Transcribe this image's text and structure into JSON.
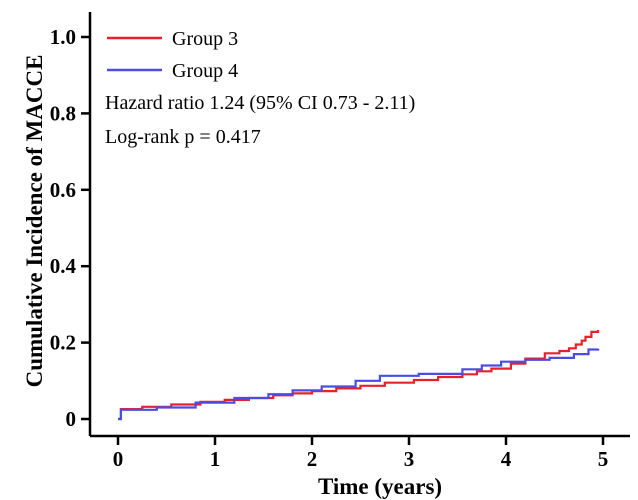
{
  "chart_data": {
    "type": "line",
    "title": "",
    "xlabel": "Time (years)",
    "ylabel": "Cumulative Incidence of MACCE",
    "xlim": [
      0,
      5.2
    ],
    "ylim": [
      0,
      1.05
    ],
    "x_ticks": [
      0,
      1,
      2,
      3,
      4,
      5
    ],
    "x_tick_labels": [
      "0",
      "1",
      "2",
      "3",
      "4",
      "5"
    ],
    "y_ticks": [
      0,
      0.2,
      0.4,
      0.6,
      0.8,
      1.0
    ],
    "y_tick_labels": [
      "0",
      "0.2",
      "0.4",
      "0.6",
      "0.8",
      "1.0"
    ],
    "grid": false,
    "legend_position": "top-left",
    "annotations": [
      "Hazard ratio 1.24 (95% CI 0.73 - 2.11)",
      "Log-rank p = 0.417"
    ],
    "series": [
      {
        "name": "Group 3",
        "color": "#e8202a",
        "step": true,
        "x": [
          0,
          0.03,
          0.25,
          0.55,
          0.85,
          1.1,
          1.35,
          1.6,
          1.8,
          2.0,
          2.25,
          2.5,
          2.75,
          3.05,
          3.3,
          3.55,
          3.7,
          3.85,
          4.05,
          4.2,
          4.4,
          4.55,
          4.65,
          4.72,
          4.78,
          4.82,
          4.88,
          4.95
        ],
        "y": [
          0.0,
          0.026,
          0.032,
          0.038,
          0.045,
          0.05,
          0.055,
          0.062,
          0.067,
          0.073,
          0.08,
          0.087,
          0.095,
          0.102,
          0.11,
          0.117,
          0.125,
          0.132,
          0.145,
          0.158,
          0.172,
          0.178,
          0.185,
          0.195,
          0.205,
          0.215,
          0.228,
          0.233
        ]
      },
      {
        "name": "Group 4",
        "color": "#4a4de0",
        "step": true,
        "x": [
          0,
          0.03,
          0.4,
          0.8,
          1.2,
          1.55,
          1.8,
          2.1,
          2.45,
          2.7,
          3.1,
          3.55,
          3.75,
          3.95,
          4.2,
          4.45,
          4.7,
          4.85,
          4.95
        ],
        "y": [
          0.0,
          0.024,
          0.03,
          0.043,
          0.055,
          0.065,
          0.075,
          0.085,
          0.1,
          0.113,
          0.118,
          0.13,
          0.14,
          0.15,
          0.155,
          0.16,
          0.17,
          0.182,
          0.184
        ]
      }
    ]
  }
}
